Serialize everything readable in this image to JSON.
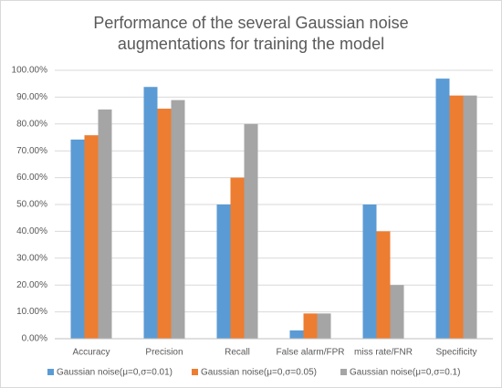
{
  "chart_data": {
    "type": "bar",
    "title": "Performance of the several Gaussian noise augmentations for training the model",
    "categories": [
      "Accuracy",
      "Precision",
      "Recall",
      "False alarm/FPR",
      "miss rate/FNR",
      "Specificity"
    ],
    "series": [
      {
        "name": "Gaussian noise(μ=0,σ=0.01)",
        "color": "#5b9bd5",
        "values": [
          74.2,
          93.8,
          50,
          3.1,
          50,
          96.9
        ]
      },
      {
        "name": "Gaussian noise(μ=0,σ=0.05)",
        "color": "#ed7d31",
        "values": [
          75.8,
          85.7,
          60,
          9.4,
          40,
          90.6
        ]
      },
      {
        "name": "Gaussian noise(μ=0,σ=0.1)",
        "color": "#a5a5a5",
        "values": [
          85.4,
          88.9,
          80,
          9.4,
          20,
          90.6
        ]
      }
    ],
    "ylim": [
      0,
      100
    ],
    "yticks": [
      {
        "value": 0,
        "label": "0.00%"
      },
      {
        "value": 10,
        "label": "10.00%"
      },
      {
        "value": 20,
        "label": "20.00%"
      },
      {
        "value": 30,
        "label": "30.00%"
      },
      {
        "value": 40,
        "label": "40.00%"
      },
      {
        "value": 50,
        "label": "50.00%"
      },
      {
        "value": 60,
        "label": "60.00%"
      },
      {
        "value": 70,
        "label": "70.00%"
      },
      {
        "value": 80,
        "label": "80.00%"
      },
      {
        "value": 90,
        "label": "90.00%"
      },
      {
        "value": 100,
        "label": "100.00%"
      }
    ],
    "grid": true,
    "legend": "bottom"
  }
}
